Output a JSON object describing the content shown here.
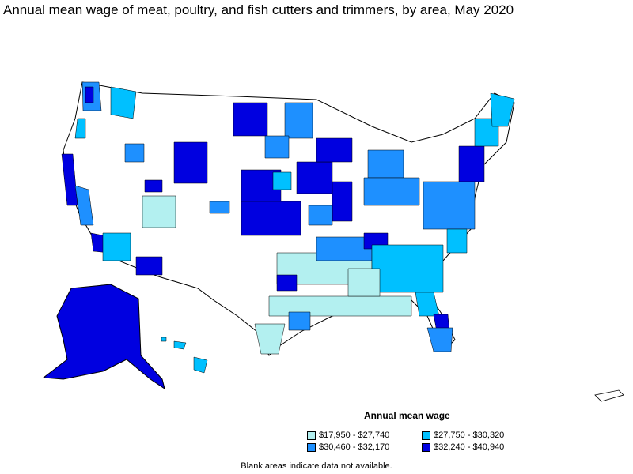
{
  "title": "Annual mean wage of meat, poultry, and fish cutters and trimmers, by area, May 2020",
  "legend": {
    "title": "Annual mean wage",
    "items": [
      {
        "label": "$17,950 - $27,740",
        "color": "#b3f0f0"
      },
      {
        "label": "$27,750 - $30,320",
        "color": "#00c0ff"
      },
      {
        "label": "$30,460 - $32,170",
        "color": "#1e90ff"
      },
      {
        "label": "$32,240 - $40,940",
        "color": "#0000e0"
      }
    ]
  },
  "footnote": "Blank areas indicate data not available.",
  "colors": {
    "no_data": "#ffffff",
    "border": "#000000"
  }
}
